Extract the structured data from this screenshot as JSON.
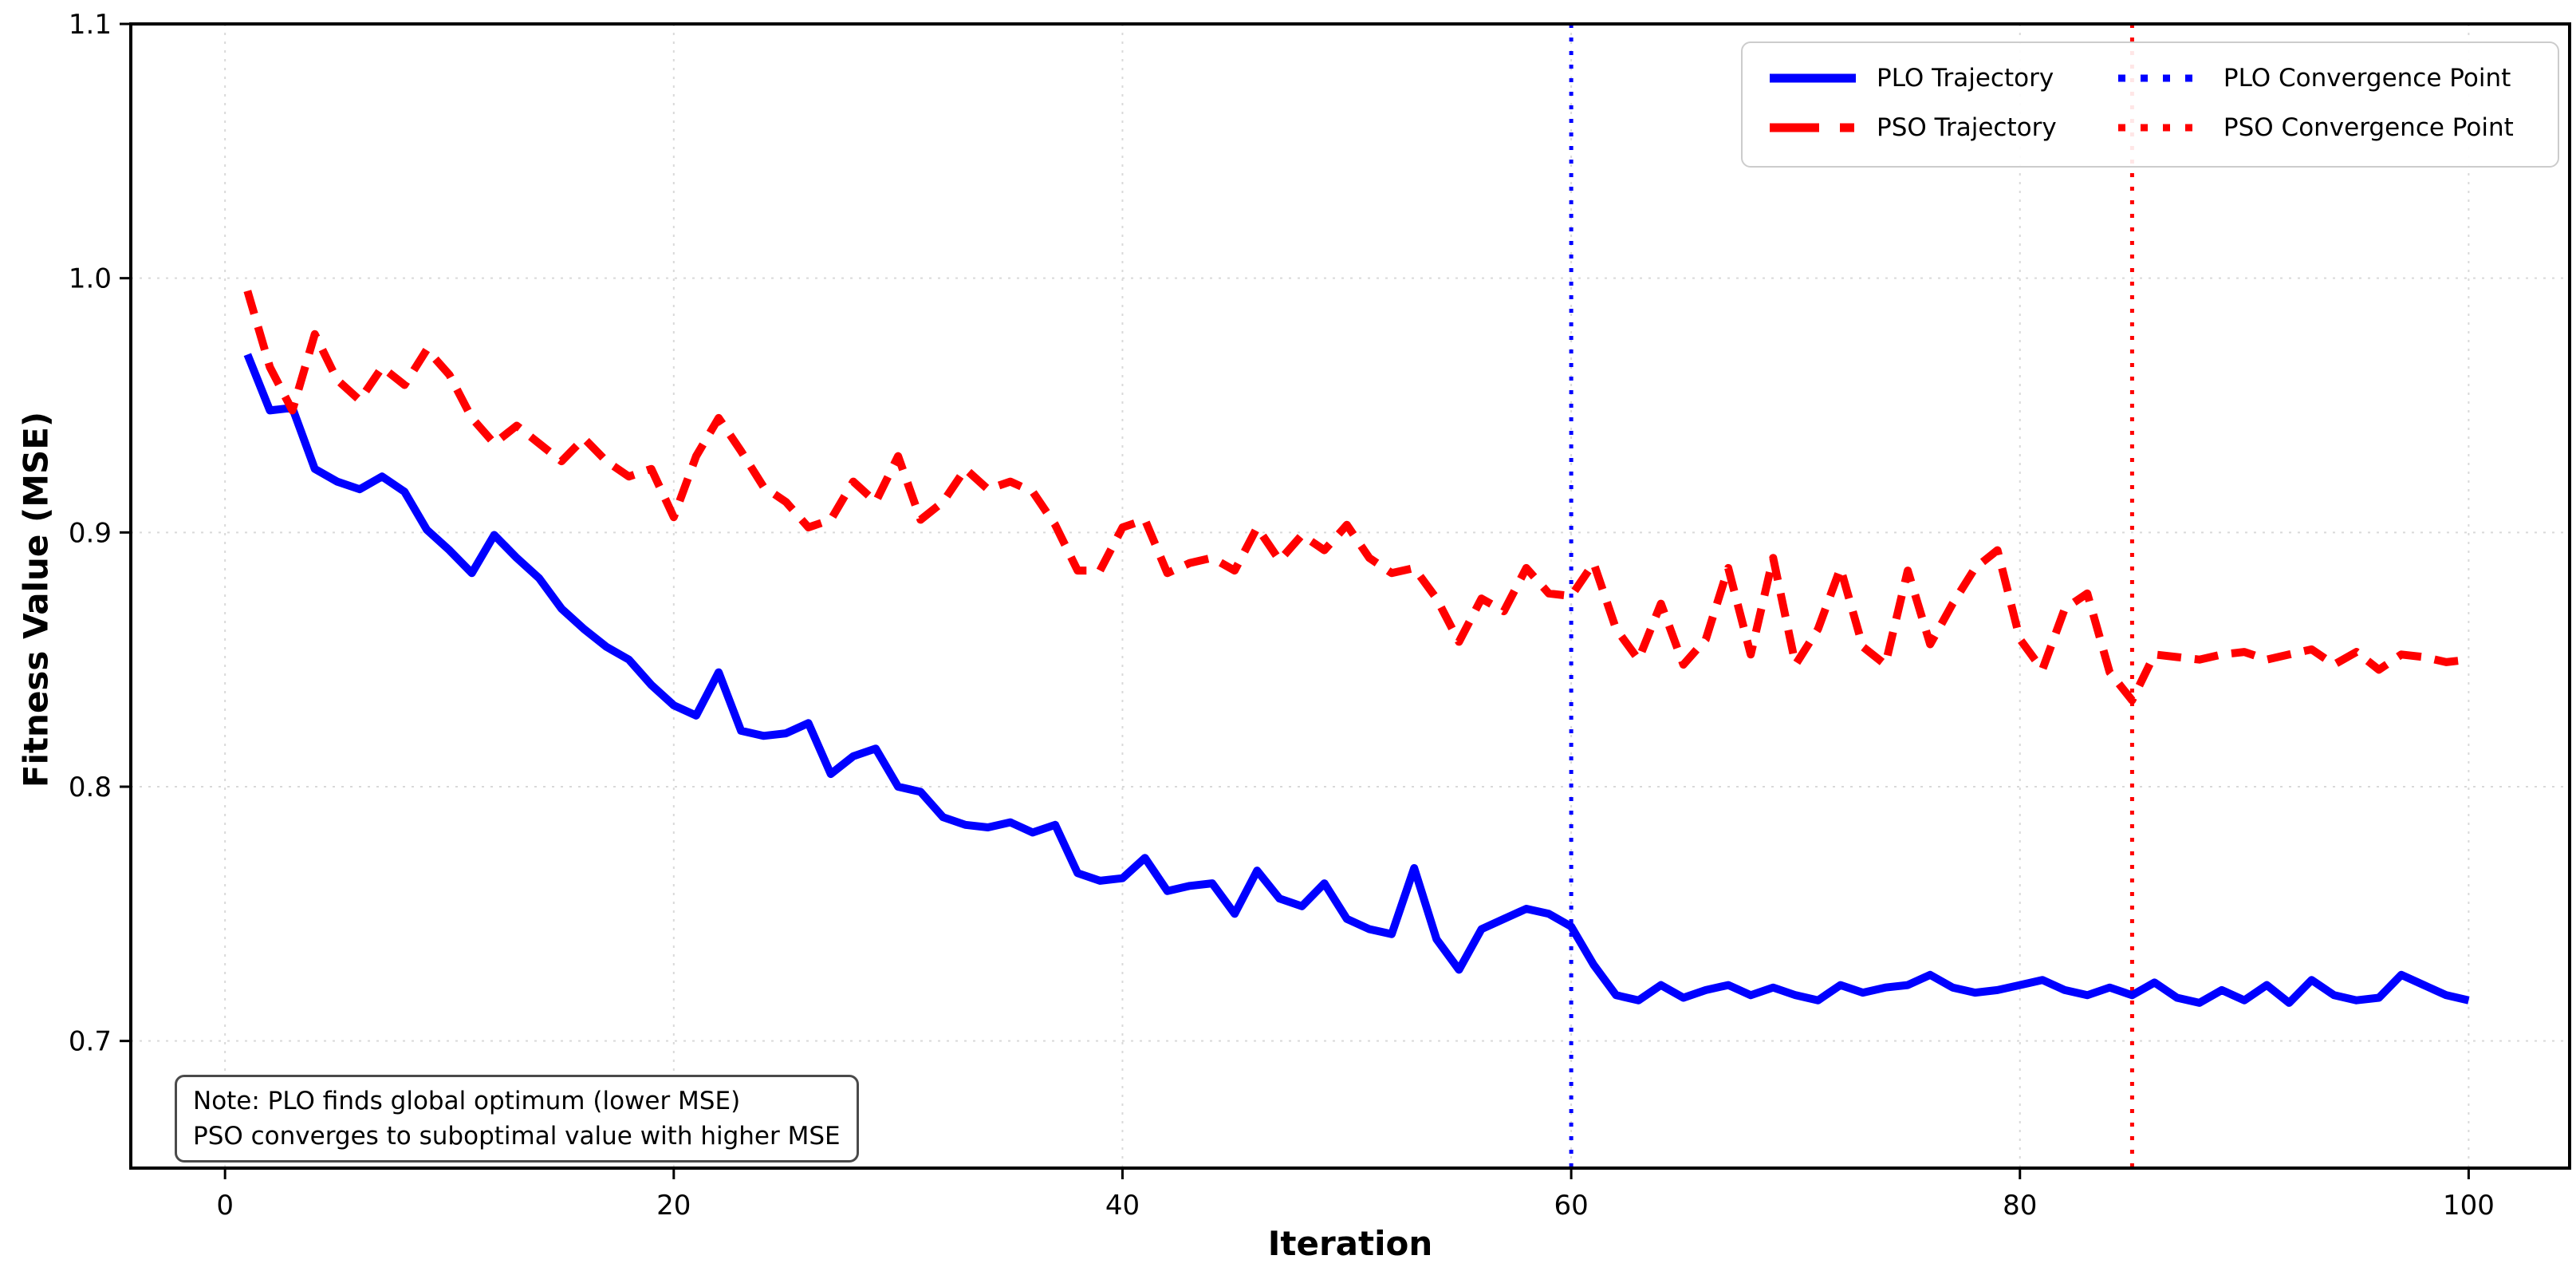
{
  "figure": {
    "x_axis_label": "Iteration",
    "y_axis_label": "Fitness Value (MSE)"
  },
  "colors": {
    "plo": "#0000ff",
    "pso": "#ff0000",
    "grid": "#d9d9d9",
    "spine": "#000000",
    "legend_border": "#cccccc",
    "note_border": "#4a4a4a"
  },
  "legend": {
    "entries": [
      {
        "label": "PLO Trajectory",
        "color": "#0000ff",
        "style": "solid"
      },
      {
        "label": "PSO Trajectory",
        "color": "#ff0000",
        "style": "dashed"
      },
      {
        "label": "PLO Convergence Point",
        "color": "#0000ff",
        "style": "dotted"
      },
      {
        "label": "PSO Convergence Point",
        "color": "#ff0000",
        "style": "dotted"
      }
    ]
  },
  "note": {
    "line1": "Note: PLO finds global optimum (lower MSE)",
    "line2": "PSO converges to suboptimal value with higher MSE"
  },
  "chart_data": {
    "type": "line",
    "title": "",
    "xlabel": "Iteration",
    "ylabel": "Fitness Value (MSE)",
    "xlim": [
      -4.2,
      104.5
    ],
    "ylim": [
      0.65,
      1.1
    ],
    "x_ticks": [
      0,
      20,
      40,
      60,
      80,
      100
    ],
    "x_tick_labels": [
      "0",
      "20",
      "40",
      "60",
      "80",
      "100"
    ],
    "y_ticks": [
      0.7,
      0.8,
      0.9,
      1.0,
      1.1
    ],
    "y_tick_labels": [
      "0.7",
      "0.8",
      "0.9",
      "1.0",
      "1.1"
    ],
    "grid": true,
    "grid_style": "dotted",
    "legend_position": "upper right",
    "x_start": 1,
    "series": [
      {
        "name": "PLO Trajectory",
        "color": "#0000ff",
        "style": "solid",
        "converges_at_iteration": 60,
        "converged_value": 0.72,
        "values": [
          0.97,
          0.948,
          0.949,
          0.925,
          0.92,
          0.917,
          0.922,
          0.916,
          0.901,
          0.893,
          0.884,
          0.899,
          0.89,
          0.882,
          0.87,
          0.862,
          0.855,
          0.85,
          0.84,
          0.832,
          0.828,
          0.845,
          0.822,
          0.82,
          0.821,
          0.825,
          0.805,
          0.812,
          0.815,
          0.8,
          0.798,
          0.788,
          0.785,
          0.784,
          0.786,
          0.782,
          0.785,
          0.766,
          0.763,
          0.764,
          0.772,
          0.759,
          0.761,
          0.762,
          0.75,
          0.767,
          0.756,
          0.753,
          0.762,
          0.748,
          0.744,
          0.742,
          0.768,
          0.74,
          0.728,
          0.744,
          0.748,
          0.752,
          0.75,
          0.745,
          0.73,
          0.718,
          0.716,
          0.722,
          0.717,
          0.72,
          0.722,
          0.718,
          0.721,
          0.718,
          0.716,
          0.722,
          0.719,
          0.721,
          0.722,
          0.726,
          0.721,
          0.719,
          0.72,
          0.722,
          0.724,
          0.72,
          0.718,
          0.721,
          0.718,
          0.723,
          0.717,
          0.715,
          0.72,
          0.716,
          0.722,
          0.715,
          0.724,
          0.718,
          0.716,
          0.717,
          0.726,
          0.722,
          0.718,
          0.716
        ]
      },
      {
        "name": "PSO Trajectory",
        "color": "#ff0000",
        "style": "dashed",
        "converges_at_iteration": 85,
        "converged_value": 0.85,
        "values": [
          0.995,
          0.965,
          0.948,
          0.978,
          0.96,
          0.952,
          0.965,
          0.958,
          0.972,
          0.962,
          0.945,
          0.935,
          0.942,
          0.935,
          0.928,
          0.937,
          0.928,
          0.922,
          0.925,
          0.906,
          0.93,
          0.945,
          0.932,
          0.918,
          0.912,
          0.902,
          0.905,
          0.92,
          0.912,
          0.93,
          0.905,
          0.912,
          0.925,
          0.917,
          0.92,
          0.916,
          0.903,
          0.885,
          0.885,
          0.902,
          0.905,
          0.884,
          0.888,
          0.89,
          0.885,
          0.902,
          0.889,
          0.899,
          0.893,
          0.903,
          0.89,
          0.884,
          0.886,
          0.874,
          0.857,
          0.874,
          0.869,
          0.886,
          0.876,
          0.875,
          0.888,
          0.862,
          0.85,
          0.872,
          0.848,
          0.858,
          0.886,
          0.852,
          0.89,
          0.848,
          0.862,
          0.886,
          0.855,
          0.848,
          0.885,
          0.856,
          0.872,
          0.886,
          0.893,
          0.858,
          0.846,
          0.87,
          0.876,
          0.845,
          0.834,
          0.852,
          0.851,
          0.85,
          0.852,
          0.853,
          0.85,
          0.852,
          0.854,
          0.848,
          0.853,
          0.846,
          0.852,
          0.851,
          0.849,
          0.85
        ]
      }
    ],
    "vlines": [
      {
        "name": "PLO Convergence Point",
        "x": 60,
        "color": "#0000ff",
        "style": "dotted"
      },
      {
        "name": "PSO Convergence Point",
        "x": 85,
        "color": "#ff0000",
        "style": "dotted"
      }
    ],
    "annotation": "Note: PLO finds global optimum (lower MSE)\nPSO converges to suboptimal value with higher MSE"
  }
}
